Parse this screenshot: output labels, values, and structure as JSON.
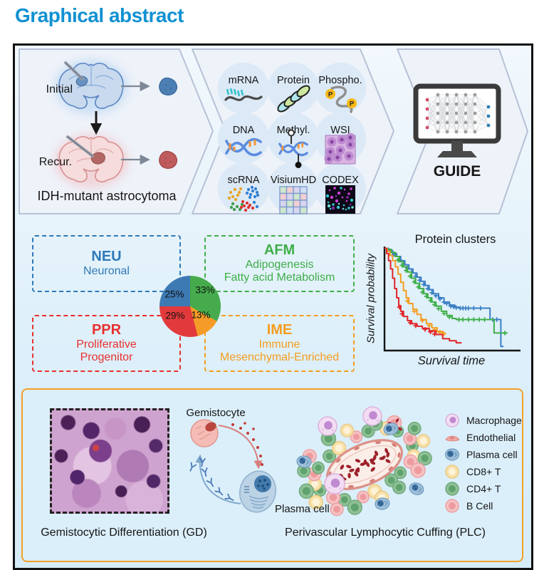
{
  "title": "Graphical abstract",
  "colors": {
    "heading": "#1191d2",
    "figure_border": "#111111",
    "panel_fill": "#eef2f9",
    "panel_stroke": "#b6c2d6",
    "bottom_box_border": "#f5a028"
  },
  "samples_panel": {
    "initial_label": "Initial",
    "recur_label": "Recur.",
    "caption": "IDH-mutant astrocytoma"
  },
  "omics_panel": {
    "items": [
      {
        "label": "mRNA",
        "icon": "mrna-icon"
      },
      {
        "label": "Protein",
        "icon": "protein-icon"
      },
      {
        "label": "Phospho.",
        "icon": "phosphoprotein-icon"
      },
      {
        "label": "DNA",
        "icon": "dna-icon"
      },
      {
        "label": "Methyl.",
        "icon": "methylation-icon"
      },
      {
        "label": "WSI",
        "icon": "wsi-icon"
      },
      {
        "label": "scRNA",
        "icon": "scrna-icon"
      },
      {
        "label": "VisiumHD",
        "icon": "visiumhd-icon"
      },
      {
        "label": "CODEX",
        "icon": "codex-icon"
      }
    ]
  },
  "model_panel": {
    "label": "GUIDE"
  },
  "clusters": [
    {
      "code": "NEU",
      "name_lines": [
        "Neuronal"
      ],
      "color": "#2e79b8"
    },
    {
      "code": "AFM",
      "name_lines": [
        "Adipogenesis",
        "Fatty acid Metabolism"
      ],
      "color": "#3fae49"
    },
    {
      "code": "PPR",
      "name_lines": [
        "Proliferative",
        "Progenitor"
      ],
      "color": "#e8302e"
    },
    {
      "code": "IME",
      "name_lines": [
        "Immune",
        "Mesenchymal-Enriched"
      ],
      "color": "#f59d20"
    }
  ],
  "chart_data": [
    {
      "type": "pie",
      "start_angle_deg": 0,
      "direction": "clockwise",
      "slices": [
        {
          "name": "AFM",
          "value": 33,
          "label": "33%",
          "color": "#46ab4c"
        },
        {
          "name": "IME",
          "value": 13,
          "label": "13%",
          "color": "#f59c28"
        },
        {
          "name": "PPR",
          "value": 29,
          "label": "29%",
          "color": "#e23a3c"
        },
        {
          "name": "NEU",
          "value": 25,
          "label": "25%",
          "color": "#3d7ab3"
        }
      ]
    },
    {
      "type": "line",
      "subtype": "kaplan-meier",
      "title": "Protein clusters",
      "xlabel": "Survival time",
      "ylabel": "Survival probability",
      "x_range": [
        0,
        1
      ],
      "y_range": [
        0,
        1
      ],
      "grid": false,
      "legend_position": "none",
      "series": [
        {
          "name": "blue",
          "color": "#3a7fc4",
          "points": [
            [
              0,
              0.99
            ],
            [
              0.03,
              0.97
            ],
            [
              0.06,
              0.94
            ],
            [
              0.09,
              0.91
            ],
            [
              0.12,
              0.87
            ],
            [
              0.15,
              0.83
            ],
            [
              0.18,
              0.79
            ],
            [
              0.21,
              0.75
            ],
            [
              0.24,
              0.71
            ],
            [
              0.27,
              0.67
            ],
            [
              0.3,
              0.63
            ],
            [
              0.33,
              0.59
            ],
            [
              0.36,
              0.55
            ],
            [
              0.4,
              0.51
            ],
            [
              0.44,
              0.47
            ],
            [
              0.48,
              0.44
            ],
            [
              0.52,
              0.42
            ],
            [
              0.55,
              0.41
            ],
            [
              0.78,
              0.41
            ],
            [
              0.78,
              0.3
            ],
            [
              0.86,
              0.3
            ],
            [
              0.86,
              0.04
            ],
            [
              0.88,
              0.04
            ]
          ],
          "censors": [
            [
              0.07,
              0.93
            ],
            [
              0.11,
              0.88
            ],
            [
              0.14,
              0.84
            ],
            [
              0.17,
              0.8
            ],
            [
              0.2,
              0.76
            ],
            [
              0.23,
              0.72
            ],
            [
              0.26,
              0.68
            ],
            [
              0.29,
              0.64
            ],
            [
              0.32,
              0.6
            ],
            [
              0.35,
              0.56
            ],
            [
              0.38,
              0.53
            ],
            [
              0.41,
              0.5
            ],
            [
              0.44,
              0.47
            ],
            [
              0.46,
              0.455
            ],
            [
              0.49,
              0.43
            ],
            [
              0.51,
              0.425
            ],
            [
              0.53,
              0.415
            ],
            [
              0.56,
              0.41
            ],
            [
              0.58,
              0.41
            ],
            [
              0.6,
              0.41
            ],
            [
              0.62,
              0.41
            ],
            [
              0.66,
              0.41
            ],
            [
              0.71,
              0.41
            ],
            [
              0.8,
              0.3
            ],
            [
              0.83,
              0.3
            ]
          ]
        },
        {
          "name": "green",
          "color": "#3fae49",
          "points": [
            [
              0,
              0.99
            ],
            [
              0.02,
              0.98
            ],
            [
              0.05,
              0.95
            ],
            [
              0.08,
              0.91
            ],
            [
              0.11,
              0.86
            ],
            [
              0.14,
              0.81
            ],
            [
              0.17,
              0.76
            ],
            [
              0.2,
              0.7
            ],
            [
              0.23,
              0.65
            ],
            [
              0.26,
              0.6
            ],
            [
              0.29,
              0.55
            ],
            [
              0.32,
              0.51
            ],
            [
              0.35,
              0.47
            ],
            [
              0.38,
              0.43
            ],
            [
              0.42,
              0.38
            ],
            [
              0.46,
              0.34
            ],
            [
              0.5,
              0.31
            ],
            [
              0.53,
              0.3
            ],
            [
              0.81,
              0.3
            ],
            [
              0.81,
              0.17
            ],
            [
              0.91,
              0.17
            ]
          ],
          "censors": [
            [
              0.1,
              0.875
            ],
            [
              0.13,
              0.825
            ],
            [
              0.16,
              0.775
            ],
            [
              0.19,
              0.72
            ],
            [
              0.22,
              0.665
            ],
            [
              0.25,
              0.615
            ],
            [
              0.28,
              0.565
            ],
            [
              0.31,
              0.525
            ],
            [
              0.34,
              0.485
            ],
            [
              0.37,
              0.445
            ],
            [
              0.4,
              0.405
            ],
            [
              0.44,
              0.36
            ],
            [
              0.48,
              0.325
            ],
            [
              0.55,
              0.3
            ],
            [
              0.58,
              0.3
            ],
            [
              0.62,
              0.3
            ],
            [
              0.66,
              0.3
            ],
            [
              0.7,
              0.3
            ],
            [
              0.74,
              0.3
            ],
            [
              0.89,
              0.17
            ]
          ]
        },
        {
          "name": "orange",
          "color": "#f59d20",
          "points": [
            [
              0,
              0.99
            ],
            [
              0.02,
              0.96
            ],
            [
              0.04,
              0.92
            ],
            [
              0.06,
              0.87
            ],
            [
              0.08,
              0.81
            ],
            [
              0.1,
              0.74
            ],
            [
              0.12,
              0.66
            ],
            [
              0.14,
              0.58
            ],
            [
              0.16,
              0.51
            ],
            [
              0.18,
              0.455
            ],
            [
              0.21,
              0.4
            ],
            [
              0.24,
              0.35
            ],
            [
              0.27,
              0.3
            ],
            [
              0.31,
              0.26
            ],
            [
              0.35,
              0.22
            ],
            [
              0.39,
              0.185
            ],
            [
              0.43,
              0.165
            ],
            [
              0.45,
              0.16
            ]
          ],
          "censors": [
            [
              0.17,
              0.48
            ],
            [
              0.22,
              0.38
            ],
            [
              0.28,
              0.29
            ],
            [
              0.33,
              0.24
            ],
            [
              0.37,
              0.2
            ],
            [
              0.41,
              0.175
            ],
            [
              0.44,
              0.162
            ]
          ]
        },
        {
          "name": "red",
          "color": "#e02528",
          "points": [
            [
              0,
              0.99
            ],
            [
              0.015,
              0.94
            ],
            [
              0.03,
              0.87
            ],
            [
              0.045,
              0.79
            ],
            [
              0.06,
              0.7
            ],
            [
              0.075,
              0.6
            ],
            [
              0.09,
              0.51
            ],
            [
              0.105,
              0.435
            ],
            [
              0.12,
              0.38
            ],
            [
              0.14,
              0.33
            ],
            [
              0.17,
              0.29
            ],
            [
              0.2,
              0.26
            ],
            [
              0.24,
              0.235
            ],
            [
              0.28,
              0.215
            ],
            [
              0.33,
              0.19
            ],
            [
              0.38,
              0.155
            ],
            [
              0.43,
              0.115
            ],
            [
              0.48,
              0.095
            ],
            [
              0.53,
              0.075
            ],
            [
              0.57,
              0.075
            ]
          ],
          "censors": [
            [
              0.11,
              0.42
            ],
            [
              0.13,
              0.355
            ],
            [
              0.19,
              0.27
            ],
            [
              0.23,
              0.24
            ],
            [
              0.3,
              0.205
            ],
            [
              0.34,
              0.18
            ],
            [
              0.37,
              0.16
            ]
          ]
        }
      ]
    }
  ],
  "bottom_panel": {
    "gd": {
      "caption": "Gemistocytic Differentiation (GD)",
      "gemistocyte_label": "Gemistocyte",
      "plasma_label": "Plasma cell"
    },
    "plc": {
      "caption": "Perivascular Lymphocytic Cuffing (PLC)",
      "legend": [
        {
          "label": "Macrophage",
          "icon": "macrophage-icon"
        },
        {
          "label": "Endothelial",
          "icon": "endothelial-icon"
        },
        {
          "label": "Plasma cell",
          "icon": "plasma-cell-icon"
        },
        {
          "label": "CD8+ T",
          "icon": "cd8-t-cell-icon"
        },
        {
          "label": "CD4+ T",
          "icon": "cd4-t-cell-icon"
        },
        {
          "label": "B Cell",
          "icon": "b-cell-icon"
        }
      ]
    }
  }
}
